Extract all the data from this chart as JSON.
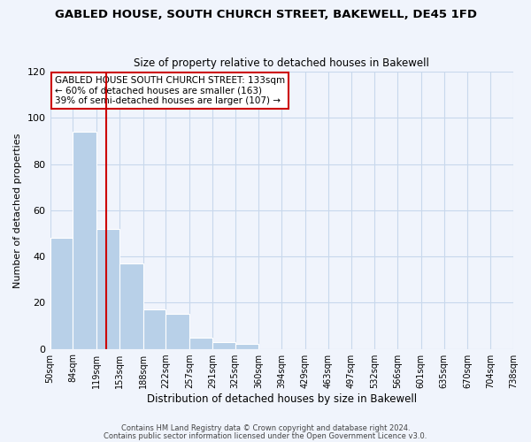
{
  "title": "GABLED HOUSE, SOUTH CHURCH STREET, BAKEWELL, DE45 1FD",
  "subtitle": "Size of property relative to detached houses in Bakewell",
  "xlabel": "Distribution of detached houses by size in Bakewell",
  "ylabel": "Number of detached properties",
  "bar_edges": [
    50,
    84,
    119,
    153,
    188,
    222,
    257,
    291,
    325,
    360,
    394,
    429,
    463,
    497,
    532,
    566,
    601,
    635,
    670,
    704,
    738
  ],
  "bar_heights": [
    48,
    94,
    52,
    37,
    17,
    15,
    5,
    3,
    2,
    0,
    0,
    0,
    0,
    0,
    0,
    0,
    0,
    0,
    0,
    0
  ],
  "bar_color": "#b8d0e8",
  "grid_color": "#c8d8ec",
  "vline_x": 133,
  "vline_color": "#cc0000",
  "ylim": [
    0,
    120
  ],
  "yticks": [
    0,
    20,
    40,
    60,
    80,
    100,
    120
  ],
  "annotation_text": "GABLED HOUSE SOUTH CHURCH STREET: 133sqm\n← 60% of detached houses are smaller (163)\n39% of semi-detached houses are larger (107) →",
  "annotation_box_color": "#ffffff",
  "annotation_box_edgecolor": "#cc0000",
  "footer_line1": "Contains HM Land Registry data © Crown copyright and database right 2024.",
  "footer_line2": "Contains public sector information licensed under the Open Government Licence v3.0.",
  "tick_labels": [
    "50sqm",
    "84sqm",
    "119sqm",
    "153sqm",
    "188sqm",
    "222sqm",
    "257sqm",
    "291sqm",
    "325sqm",
    "360sqm",
    "394sqm",
    "429sqm",
    "463sqm",
    "497sqm",
    "532sqm",
    "566sqm",
    "601sqm",
    "635sqm",
    "670sqm",
    "704sqm",
    "738sqm"
  ],
  "background_color": "#f0f4fc",
  "plot_bg_color": "#e8eef8"
}
